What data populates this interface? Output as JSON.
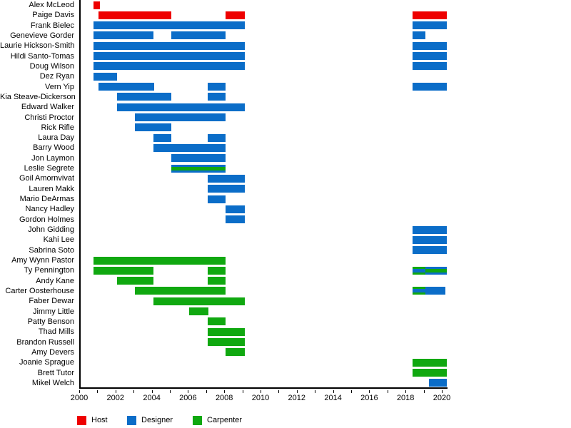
{
  "chart_data": {
    "type": "bar",
    "subtype": "gantt-timeline",
    "title": "",
    "xlabel": "",
    "ylabel": "",
    "x_axis": {
      "min": 2000,
      "max": 2020.3,
      "labeled_ticks": [
        2000,
        2002,
        2004,
        2006,
        2008,
        2010,
        2012,
        2014,
        2016,
        2018,
        2020
      ],
      "minor_tick_every": 1,
      "grid": false
    },
    "colors": {
      "host": "#ee0000",
      "designer": "#0b6dc8",
      "carpenter": "#10a810"
    },
    "legend": [
      {
        "label": "Host",
        "role": "host"
      },
      {
        "label": "Designer",
        "role": "designer"
      },
      {
        "label": "Carpenter",
        "role": "carpenter"
      }
    ],
    "people": [
      {
        "name": "Alex McLeod",
        "bars": [
          {
            "start": 2000.72,
            "end": 2001.06,
            "role": "host"
          }
        ]
      },
      {
        "name": "Paige Davis",
        "bars": [
          {
            "start": 2001,
            "end": 2005,
            "role": "host"
          },
          {
            "start": 2008,
            "end": 2009.05,
            "role": "host"
          },
          {
            "start": 2018.3,
            "end": 2020.2,
            "role": "host"
          }
        ]
      },
      {
        "name": "Frank Bielec",
        "bars": [
          {
            "start": 2000.72,
            "end": 2009.05,
            "role": "designer"
          },
          {
            "start": 2018.3,
            "end": 2020.2,
            "role": "designer"
          }
        ]
      },
      {
        "name": "Genevieve Gorder",
        "bars": [
          {
            "start": 2000.72,
            "end": 2004,
            "role": "designer"
          },
          {
            "start": 2005,
            "end": 2008,
            "role": "designer"
          },
          {
            "start": 2018.3,
            "end": 2019,
            "role": "designer"
          }
        ]
      },
      {
        "name": "Laurie Hickson-Smith",
        "bars": [
          {
            "start": 2000.72,
            "end": 2009.05,
            "role": "designer"
          },
          {
            "start": 2018.3,
            "end": 2020.2,
            "role": "designer"
          }
        ]
      },
      {
        "name": "Hildi Santo-Tomas",
        "bars": [
          {
            "start": 2000.72,
            "end": 2009.05,
            "role": "designer"
          },
          {
            "start": 2018.3,
            "end": 2020.2,
            "role": "designer"
          }
        ]
      },
      {
        "name": "Doug Wilson",
        "bars": [
          {
            "start": 2000.72,
            "end": 2009.05,
            "role": "designer"
          },
          {
            "start": 2018.3,
            "end": 2020.2,
            "role": "designer"
          }
        ]
      },
      {
        "name": "Dez Ryan",
        "bars": [
          {
            "start": 2000.72,
            "end": 2002,
            "role": "designer"
          }
        ]
      },
      {
        "name": "Vern Yip",
        "bars": [
          {
            "start": 2001,
            "end": 2004.05,
            "role": "designer"
          },
          {
            "start": 2007,
            "end": 2008,
            "role": "designer"
          },
          {
            "start": 2018.3,
            "end": 2020.2,
            "role": "designer"
          }
        ]
      },
      {
        "name": "Kia Steave-Dickerson",
        "bars": [
          {
            "start": 2002,
            "end": 2005,
            "role": "designer"
          },
          {
            "start": 2007,
            "end": 2008,
            "role": "designer"
          }
        ]
      },
      {
        "name": "Edward Walker",
        "bars": [
          {
            "start": 2002,
            "end": 2009.05,
            "role": "designer"
          }
        ]
      },
      {
        "name": "Christi Proctor",
        "bars": [
          {
            "start": 2003,
            "end": 2008,
            "role": "designer"
          }
        ]
      },
      {
        "name": "Rick Rifle",
        "bars": [
          {
            "start": 2003,
            "end": 2005,
            "role": "designer"
          }
        ]
      },
      {
        "name": "Laura Day",
        "bars": [
          {
            "start": 2004,
            "end": 2005,
            "role": "designer"
          },
          {
            "start": 2007,
            "end": 2008,
            "role": "designer"
          }
        ]
      },
      {
        "name": "Barry Wood",
        "bars": [
          {
            "start": 2004,
            "end": 2008,
            "role": "designer"
          }
        ]
      },
      {
        "name": "Jon Laymon",
        "bars": [
          {
            "start": 2005,
            "end": 2008,
            "role": "designer"
          }
        ]
      },
      {
        "name": "Leslie Segrete",
        "bars": [
          {
            "start": 2005,
            "end": 2008,
            "role": "designer",
            "stripe": "carpenter"
          }
        ]
      },
      {
        "name": "Goil Amornvivat",
        "bars": [
          {
            "start": 2007,
            "end": 2009.05,
            "role": "designer"
          }
        ]
      },
      {
        "name": "Lauren Makk",
        "bars": [
          {
            "start": 2007,
            "end": 2009.05,
            "role": "designer"
          }
        ]
      },
      {
        "name": "Mario DeArmas",
        "bars": [
          {
            "start": 2007,
            "end": 2008,
            "role": "designer"
          }
        ]
      },
      {
        "name": "Nancy Hadley",
        "bars": [
          {
            "start": 2008,
            "end": 2009.05,
            "role": "designer"
          }
        ]
      },
      {
        "name": "Gordon Holmes",
        "bars": [
          {
            "start": 2008,
            "end": 2009.05,
            "role": "designer"
          }
        ]
      },
      {
        "name": "John Gidding",
        "bars": [
          {
            "start": 2018.3,
            "end": 2020.2,
            "role": "designer"
          }
        ]
      },
      {
        "name": "Kahi Lee",
        "bars": [
          {
            "start": 2018.3,
            "end": 2020.2,
            "role": "designer"
          }
        ]
      },
      {
        "name": "Sabrina Soto",
        "bars": [
          {
            "start": 2018.3,
            "end": 2020.2,
            "role": "designer"
          }
        ]
      },
      {
        "name": "Amy Wynn Pastor",
        "bars": [
          {
            "start": 2000.72,
            "end": 2008,
            "role": "carpenter"
          }
        ]
      },
      {
        "name": "Ty Pennington",
        "bars": [
          {
            "start": 2000.72,
            "end": 2004,
            "role": "carpenter"
          },
          {
            "start": 2007,
            "end": 2008,
            "role": "carpenter"
          },
          {
            "start": 2018.3,
            "end": 2019,
            "role": "carpenter",
            "stripe": "designer"
          },
          {
            "start": 2019,
            "end": 2020.2,
            "role": "designer",
            "stripe": "carpenter"
          }
        ]
      },
      {
        "name": "Andy Kane",
        "bars": [
          {
            "start": 2002,
            "end": 2004,
            "role": "carpenter"
          },
          {
            "start": 2007,
            "end": 2008,
            "role": "carpenter"
          }
        ]
      },
      {
        "name": "Carter Oosterhouse",
        "bars": [
          {
            "start": 2003,
            "end": 2008,
            "role": "carpenter"
          },
          {
            "start": 2018.3,
            "end": 2019,
            "role": "carpenter",
            "stripe": "designer"
          },
          {
            "start": 2019,
            "end": 2020.1,
            "role": "designer"
          }
        ]
      },
      {
        "name": "Faber Dewar",
        "bars": [
          {
            "start": 2004,
            "end": 2009.05,
            "role": "carpenter"
          }
        ]
      },
      {
        "name": "Jimmy Little",
        "bars": [
          {
            "start": 2006,
            "end": 2007.05,
            "role": "carpenter"
          }
        ]
      },
      {
        "name": "Patty Benson",
        "bars": [
          {
            "start": 2007,
            "end": 2008,
            "role": "carpenter"
          }
        ]
      },
      {
        "name": "Thad Mills",
        "bars": [
          {
            "start": 2007,
            "end": 2009.05,
            "role": "carpenter"
          }
        ]
      },
      {
        "name": "Brandon Russell",
        "bars": [
          {
            "start": 2007,
            "end": 2009.05,
            "role": "carpenter"
          }
        ]
      },
      {
        "name": "Amy Devers",
        "bars": [
          {
            "start": 2008,
            "end": 2009.05,
            "role": "carpenter"
          }
        ]
      },
      {
        "name": "Joanie Sprague",
        "bars": [
          {
            "start": 2018.3,
            "end": 2020.2,
            "role": "carpenter"
          }
        ]
      },
      {
        "name": "Brett Tutor",
        "bars": [
          {
            "start": 2018.3,
            "end": 2020.2,
            "role": "carpenter"
          }
        ]
      },
      {
        "name": "Mikel Welch",
        "bars": [
          {
            "start": 2019.2,
            "end": 2020.2,
            "role": "designer"
          }
        ]
      }
    ]
  }
}
